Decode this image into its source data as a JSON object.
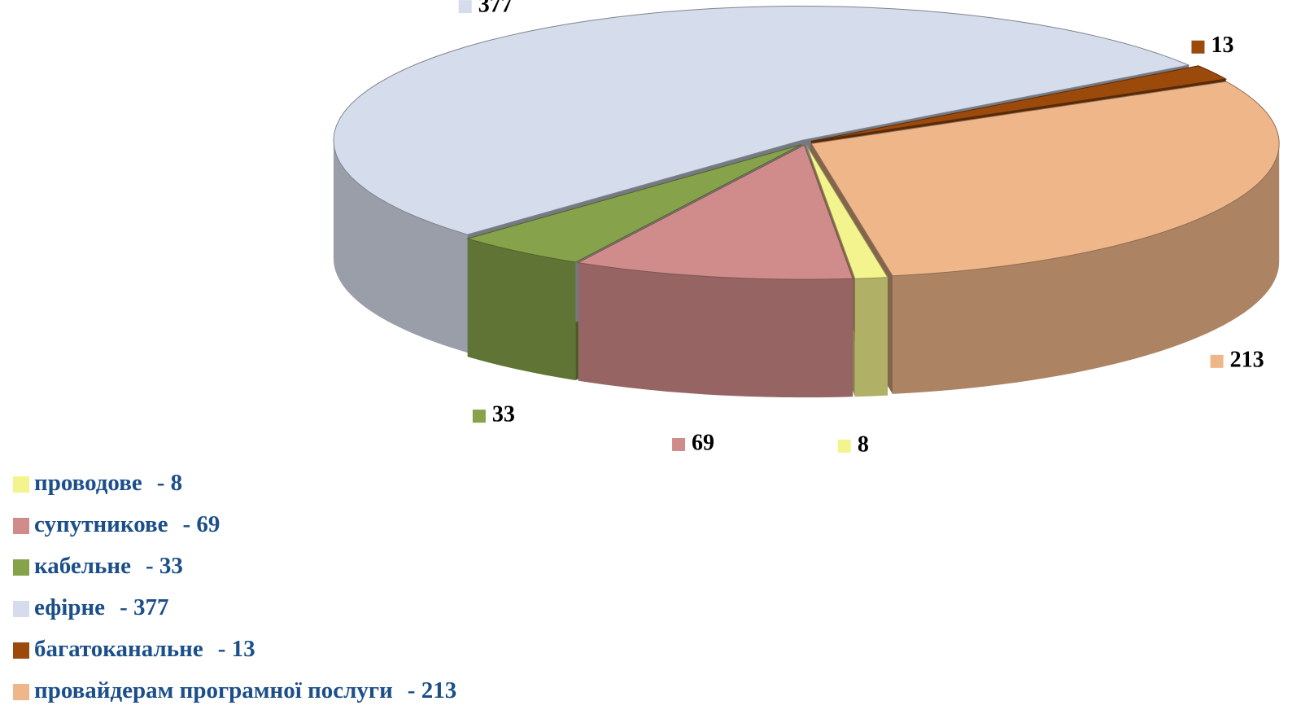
{
  "chart_data": {
    "type": "pie3d",
    "categories": [
      "проводове",
      "супутникове",
      "кабельне",
      "ефірне",
      "багатоканальне",
      "провайдерам програмної послуги"
    ],
    "values": [
      8,
      69,
      33,
      377,
      13,
      213
    ],
    "legend_value_labels": [
      "- 8",
      "- 69",
      "- 33",
      "- 377",
      "- 13",
      "- 213"
    ],
    "colors": [
      "#f4f48e",
      "#d08c8a",
      "#86a24a",
      "#d5dceb",
      "#9b4a0c",
      "#efb68a"
    ]
  }
}
